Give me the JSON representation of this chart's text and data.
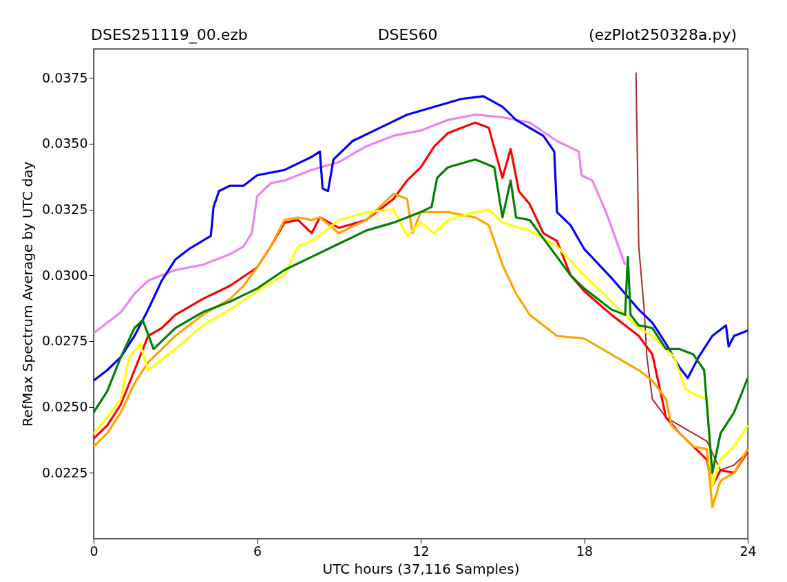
{
  "chart_data": {
    "type": "line",
    "title": "DSES251119_00.ezb",
    "annotations": [
      "DSES60",
      "(ezPlot250328a.py)"
    ],
    "xlabel": "UTC hours  (37,116 Samples)",
    "ylabel": "RefMax Spectrum Average by UTC day",
    "xlim": [
      0,
      24
    ],
    "xticks": [
      0,
      6,
      12,
      18,
      24
    ],
    "ylim": [
      0.02,
      0.0386
    ],
    "yticks": [
      0.0225,
      {
        "value": 0.025,
        "label": "0.0250"
      },
      0.0275,
      {
        "value": 0.03,
        "label": "0.0300"
      },
      0.0325,
      {
        "value": 0.035,
        "label": "0.0350"
      },
      0.0375
    ],
    "grid": false,
    "marker": "none",
    "line_style": "solid",
    "series": [
      {
        "color": "#a52a2a",
        "x": [
          19.9,
          20.0,
          20.2,
          20.3,
          20.5,
          21,
          21.5,
          22,
          22.5,
          23,
          23.5,
          24
        ],
        "values": [
          0.0377,
          0.0311,
          0.0287,
          0.0269,
          0.0253,
          0.0246,
          0.0243,
          0.024,
          0.0237,
          0.0226,
          0.0228,
          0.0233
        ]
      },
      {
        "color": "#ee82ee",
        "x": [
          0,
          1,
          1.5,
          2,
          3,
          4,
          5,
          5.5,
          5.8,
          6,
          6.5,
          7,
          8,
          9,
          10,
          11,
          12,
          13,
          14,
          15,
          16,
          17,
          17.8,
          17.9,
          18.3,
          18.8,
          19.5
        ],
        "values": [
          0.0278,
          0.0286,
          0.0293,
          0.0298,
          0.0302,
          0.0304,
          0.0308,
          0.0311,
          0.0316,
          0.033,
          0.0335,
          0.0336,
          0.034,
          0.0343,
          0.0349,
          0.0353,
          0.0355,
          0.0359,
          0.0361,
          0.036,
          0.0358,
          0.0351,
          0.0347,
          0.0338,
          0.0336,
          0.0324,
          0.0304
        ]
      },
      {
        "color": "#0000ff",
        "x": [
          0,
          0.5,
          1,
          1.5,
          2,
          2.5,
          3,
          3.5,
          4.3,
          4.4,
          4.6,
          5,
          5.5,
          6,
          7,
          8,
          8.3,
          8.4,
          8.6,
          8.8,
          9.5,
          10.5,
          11.5,
          12.5,
          13.5,
          14.3,
          15,
          15.5,
          16.5,
          16.9,
          17,
          17.5,
          18,
          19,
          20,
          20.5,
          21,
          21.5,
          21.8,
          22.2,
          22.7,
          23.2,
          23.3,
          23.5,
          24
        ],
        "values": [
          0.026,
          0.0264,
          0.0269,
          0.0277,
          0.0287,
          0.0298,
          0.0306,
          0.031,
          0.0315,
          0.0326,
          0.0332,
          0.0334,
          0.0334,
          0.0338,
          0.034,
          0.0345,
          0.0347,
          0.0333,
          0.0332,
          0.0344,
          0.0351,
          0.0356,
          0.0361,
          0.0364,
          0.0367,
          0.0368,
          0.0364,
          0.0359,
          0.0353,
          0.0347,
          0.0324,
          0.0319,
          0.031,
          0.0299,
          0.0287,
          0.0282,
          0.0274,
          0.0265,
          0.0261,
          0.0269,
          0.0277,
          0.0281,
          0.0273,
          0.0277,
          0.0279
        ]
      },
      {
        "color": "#ff0000",
        "x": [
          0,
          0.5,
          1,
          1.5,
          2,
          2.5,
          3,
          4,
          5,
          6,
          6.5,
          7,
          7.5,
          8,
          8.3,
          9,
          10,
          11,
          11.5,
          12,
          12.5,
          13,
          13.5,
          14,
          14.5,
          15,
          15.3,
          15.6,
          16,
          16.5,
          17,
          17.5,
          18,
          19,
          20,
          20.5,
          21,
          21.5,
          22,
          22.5,
          22.7,
          23,
          23.5,
          24
        ],
        "values": [
          0.0238,
          0.0243,
          0.0251,
          0.0264,
          0.0277,
          0.028,
          0.0285,
          0.0291,
          0.0296,
          0.0303,
          0.0311,
          0.032,
          0.0321,
          0.0316,
          0.0322,
          0.0318,
          0.0321,
          0.0329,
          0.0336,
          0.0341,
          0.0349,
          0.0354,
          0.0356,
          0.0358,
          0.0356,
          0.0337,
          0.0348,
          0.0332,
          0.0327,
          0.0316,
          0.0313,
          0.03,
          0.0294,
          0.0285,
          0.0277,
          0.027,
          0.0246,
          0.024,
          0.0235,
          0.023,
          0.022,
          0.0226,
          0.0225,
          0.0233
        ]
      },
      {
        "color": "#ffa500",
        "x": [
          0,
          0.5,
          1,
          1.5,
          2,
          2.5,
          3,
          4,
          5,
          5.5,
          6,
          6.5,
          7,
          7.5,
          8,
          8.3,
          9,
          10,
          11,
          11.5,
          11.7,
          12,
          13,
          14,
          14.5,
          15,
          15.5,
          16,
          17,
          18,
          19,
          20,
          20.5,
          21,
          21.2,
          22,
          22.5,
          22.7,
          23,
          23.5,
          24
        ],
        "values": [
          0.0235,
          0.024,
          0.0248,
          0.0259,
          0.0267,
          0.0272,
          0.0277,
          0.0285,
          0.0291,
          0.0296,
          0.0303,
          0.0311,
          0.0321,
          0.0322,
          0.0321,
          0.0322,
          0.0316,
          0.0321,
          0.0331,
          0.0329,
          0.0316,
          0.0324,
          0.0324,
          0.0322,
          0.0319,
          0.0304,
          0.0293,
          0.0285,
          0.0277,
          0.0276,
          0.027,
          0.0264,
          0.026,
          0.0253,
          0.0243,
          0.0235,
          0.0234,
          0.0212,
          0.0222,
          0.0225,
          0.0234
        ]
      },
      {
        "color": "#ffff00",
        "x": [
          0,
          0.5,
          1,
          1.3,
          1.7,
          2,
          3,
          4,
          5,
          6,
          7,
          7.5,
          8,
          9,
          10,
          11,
          11.5,
          12,
          12.5,
          13,
          14,
          14.5,
          15,
          16,
          17,
          18,
          19,
          20,
          20.5,
          21.3,
          21.7,
          22,
          22.5,
          22.7,
          23,
          23.5,
          24
        ],
        "values": [
          0.024,
          0.0246,
          0.0253,
          0.0269,
          0.0274,
          0.0264,
          0.0272,
          0.0281,
          0.0287,
          0.0294,
          0.03,
          0.0311,
          0.0313,
          0.0321,
          0.0324,
          0.0325,
          0.0315,
          0.032,
          0.0316,
          0.0321,
          0.0324,
          0.0325,
          0.032,
          0.0317,
          0.0311,
          0.03,
          0.029,
          0.028,
          0.0277,
          0.0269,
          0.0257,
          0.0255,
          0.0253,
          0.022,
          0.023,
          0.0235,
          0.0243
        ]
      },
      {
        "color": "#008000",
        "x": [
          0,
          0.5,
          1,
          1.5,
          1.8,
          2.2,
          3,
          4,
          5,
          6,
          7,
          8,
          9,
          10,
          11,
          12,
          12.4,
          12.6,
          13,
          14,
          14.7,
          15,
          15.3,
          15.5,
          16,
          17,
          17.5,
          18,
          19,
          19.5,
          19.6,
          19.7,
          20,
          20.5,
          21,
          21.5,
          22,
          22.4,
          22.7,
          23,
          23.5,
          24
        ],
        "values": [
          0.0248,
          0.0256,
          0.0269,
          0.028,
          0.0283,
          0.0272,
          0.028,
          0.0286,
          0.029,
          0.0295,
          0.0302,
          0.0307,
          0.0312,
          0.0317,
          0.032,
          0.0324,
          0.0326,
          0.0337,
          0.0341,
          0.0344,
          0.0341,
          0.0322,
          0.0336,
          0.0322,
          0.0321,
          0.0307,
          0.03,
          0.0295,
          0.0287,
          0.0285,
          0.0307,
          0.0285,
          0.0281,
          0.028,
          0.0272,
          0.0272,
          0.027,
          0.0264,
          0.0225,
          0.024,
          0.0248,
          0.0261
        ]
      }
    ]
  }
}
